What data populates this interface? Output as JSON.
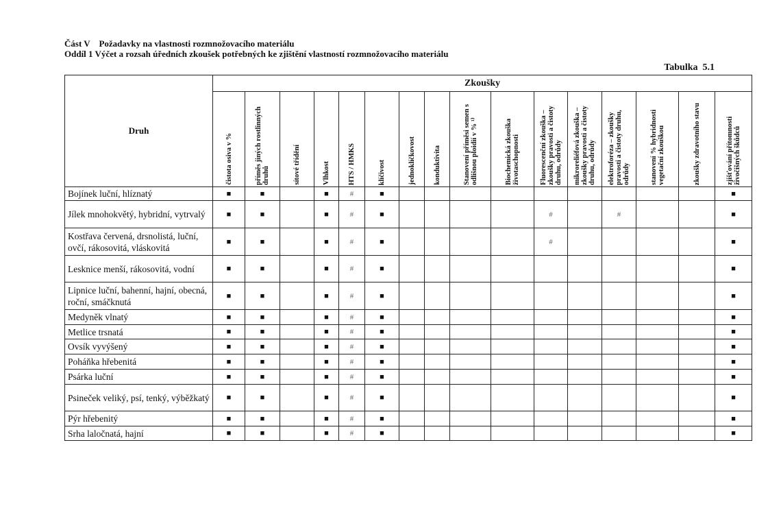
{
  "heading": {
    "line1": "Část V    Požadavky na vlastnosti rozmnožovacího materiálu",
    "line2": "Oddíl 1 Výčet a rozsah úředních zkoušek potřebných ke zjištění vlastností rozmnožovacího materiálu",
    "table_label": "Tabulka  5.1"
  },
  "table": {
    "druh_header": "Druh",
    "group_header": "Zkoušky",
    "columns": [
      "čistota osiva v %",
      "příměs jiných rostlinných druhů",
      "sítové třídění",
      "Vlhkost",
      "HTS / HMKS",
      "klíčivost",
      "jednoklíčkovost",
      "konduktivita",
      "Stanovení příměsi semen s odlišnou ploidií v % ¹⁾",
      "Biochemická zkouška životaschopnosti",
      "Fluorescenční zkouška – zkoušky pravosti a čistoty druhu, odrůdy",
      "mikroreliéfová zkouška – zkoušky pravosti a čistoty druhu, odrůdy",
      "elektroforéza – zkoušky pravosti a čistoty druhu, odrůdy",
      "stanovení % hybridnosti vegetační zkouškou",
      "zkoušky zdravotního stavu",
      "zjišťování přítomnosti živočišných škůdců"
    ],
    "rows": [
      {
        "name": "Bojínek luční, hlíznatý",
        "cells": [
          "■",
          "■",
          "",
          "■",
          "#",
          "■",
          "",
          "",
          "",
          "",
          "",
          "",
          "",
          "",
          "",
          "■"
        ]
      },
      {
        "name": "Jílek mnohokvětý, hybridní, vytrvalý",
        "cells": [
          "■",
          "■",
          "",
          "■",
          "#",
          "■",
          "",
          "",
          "",
          "",
          "#",
          "",
          "#",
          "",
          "",
          "■"
        ]
      },
      {
        "name": "Kostřava červená, drsnolistá, luční, ovčí, rákosovitá, vláskovitá",
        "cells": [
          "■",
          "■",
          "",
          "■",
          "#",
          "■",
          "",
          "",
          "",
          "",
          "#",
          "",
          "",
          "",
          "",
          "■"
        ]
      },
      {
        "name": "Lesknice menší, rákosovitá, vodní",
        "cells": [
          "■",
          "■",
          "",
          "■",
          "#",
          "■",
          "",
          "",
          "",
          "",
          "",
          "",
          "",
          "",
          "",
          "■"
        ]
      },
      {
        "name": "Lipnice luční, bahenní, hajní, obecná, roční, smáčknutá",
        "cells": [
          "■",
          "■",
          "",
          "■",
          "#",
          "■",
          "",
          "",
          "",
          "",
          "",
          "",
          "",
          "",
          "",
          "■"
        ]
      },
      {
        "name": "Medyněk vlnatý",
        "cells": [
          "■",
          "■",
          "",
          "■",
          "#",
          "■",
          "",
          "",
          "",
          "",
          "",
          "",
          "",
          "",
          "",
          "■"
        ]
      },
      {
        "name": "Metlice trsnatá",
        "cells": [
          "■",
          "■",
          "",
          "■",
          "#",
          "■",
          "",
          "",
          "",
          "",
          "",
          "",
          "",
          "",
          "",
          "■"
        ]
      },
      {
        "name": "Ovsík vyvýšený",
        "cells": [
          "■",
          "■",
          "",
          "■",
          "#",
          "■",
          "",
          "",
          "",
          "",
          "",
          "",
          "",
          "",
          "",
          "■"
        ]
      },
      {
        "name": "Poháňka hřebenitá",
        "cells": [
          "■",
          "■",
          "",
          "■",
          "#",
          "■",
          "",
          "",
          "",
          "",
          "",
          "",
          "",
          "",
          "",
          "■"
        ]
      },
      {
        "name": "Psárka luční",
        "cells": [
          "■",
          "■",
          "",
          "■",
          "#",
          "■",
          "",
          "",
          "",
          "",
          "",
          "",
          "",
          "",
          "",
          "■"
        ]
      },
      {
        "name": "Psineček veliký, psí, tenký, výběžkatý",
        "cells": [
          "■",
          "■",
          "",
          "■",
          "#",
          "■",
          "",
          "",
          "",
          "",
          "",
          "",
          "",
          "",
          "",
          "■"
        ]
      },
      {
        "name": "Pýr hřebenitý",
        "cells": [
          "■",
          "■",
          "",
          "■",
          "#",
          "■",
          "",
          "",
          "",
          "",
          "",
          "",
          "",
          "",
          "",
          "■"
        ]
      },
      {
        "name": "Srha laločnatá, hajní",
        "cells": [
          "■",
          "■",
          "",
          "■",
          "#",
          "■",
          "",
          "",
          "",
          "",
          "",
          "",
          "",
          "",
          "",
          "■"
        ]
      }
    ]
  }
}
